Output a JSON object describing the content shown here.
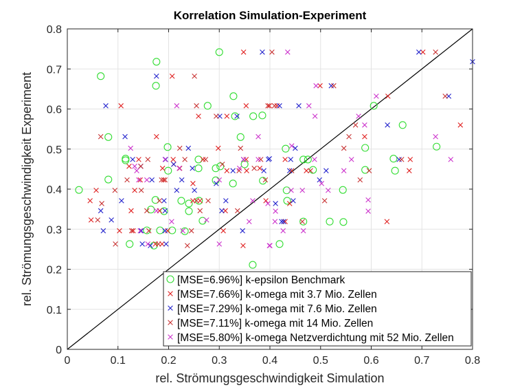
{
  "chart_data": {
    "type": "scatter",
    "title": "Korrelation Simulation-Experiment",
    "xlabel": "rel. Strömungsgeschwindigkeit Simulation",
    "ylabel": "rel. Strömungsgeschwindigkeit Experiment",
    "xlim": [
      0,
      0.8
    ],
    "ylim": [
      0,
      0.8
    ],
    "xticks": [
      "0",
      "0.1",
      "0.2",
      "0.3",
      "0.4",
      "0.5",
      "0.6",
      "0.7",
      "0.8"
    ],
    "yticks": [
      "0",
      "0.1",
      "0.2",
      "0.3",
      "0.4",
      "0.5",
      "0.6",
      "0.7",
      "0.8"
    ],
    "grid": true,
    "legend_position": "bottom-right",
    "reference_line": {
      "x": [
        0,
        0.8
      ],
      "y": [
        0,
        0.8
      ],
      "color": "#000000"
    },
    "series": [
      {
        "name": "[MSE=6.96%] k-epsilon Benchmark",
        "marker": "circle",
        "color": "#33dd33",
        "points": [
          [
            0.3,
            0.742
          ],
          [
            0.176,
            0.718
          ],
          [
            0.066,
            0.682
          ],
          [
            0.175,
            0.658
          ],
          [
            0.328,
            0.632
          ],
          [
            0.277,
            0.608
          ],
          [
            0.331,
            0.582
          ],
          [
            0.367,
            0.582
          ],
          [
            0.385,
            0.584
          ],
          [
            0.081,
            0.53
          ],
          [
            0.342,
            0.53
          ],
          [
            0.198,
            0.505
          ],
          [
            0.115,
            0.476
          ],
          [
            0.115,
            0.472
          ],
          [
            0.259,
            0.474
          ],
          [
            0.259,
            0.452
          ],
          [
            0.199,
            0.446
          ],
          [
            0.293,
            0.452
          ],
          [
            0.302,
            0.457
          ],
          [
            0.35,
            0.462
          ],
          [
            0.023,
            0.398
          ],
          [
            0.081,
            0.424
          ],
          [
            0.174,
            0.373
          ],
          [
            0.225,
            0.371
          ],
          [
            0.24,
            0.364
          ],
          [
            0.26,
            0.371
          ],
          [
            0.165,
            0.349
          ],
          [
            0.191,
            0.345
          ],
          [
            0.24,
            0.345
          ],
          [
            0.267,
            0.321
          ],
          [
            0.157,
            0.297
          ],
          [
            0.183,
            0.297
          ],
          [
            0.207,
            0.297
          ],
          [
            0.232,
            0.295
          ],
          [
            0.123,
            0.263
          ],
          [
            0.171,
            0.259
          ],
          [
            0.293,
            0.422
          ],
          [
            0.327,
            0.414
          ],
          [
            0.386,
            0.421
          ],
          [
            0.366,
            0.211
          ],
          [
            0.605,
            0.608
          ],
          [
            0.662,
            0.56
          ],
          [
            0.431,
            0.501
          ],
          [
            0.588,
            0.503
          ],
          [
            0.729,
            0.506
          ],
          [
            0.466,
            0.474
          ],
          [
            0.475,
            0.474
          ],
          [
            0.644,
            0.476
          ],
          [
            0.485,
            0.448
          ],
          [
            0.588,
            0.448
          ],
          [
            0.647,
            0.446
          ],
          [
            0.433,
            0.397
          ],
          [
            0.434,
            0.371
          ],
          [
            0.544,
            0.398
          ],
          [
            0.466,
            0.319
          ],
          [
            0.518,
            0.319
          ],
          [
            0.545,
            0.318
          ],
          [
            0.419,
            0.263
          ]
        ]
      },
      {
        "name": "[MSE=7.66%] k-omega mit 3.7 Mio. Zellen",
        "marker": "cross",
        "color": "#e02020",
        "points": [
          [
            0.348,
            0.742
          ],
          [
            0.207,
            0.682
          ],
          [
            0.106,
            0.608
          ],
          [
            0.353,
            0.608
          ],
          [
            0.259,
            0.582
          ],
          [
            0.315,
            0.582
          ],
          [
            0.176,
            0.531
          ],
          [
            0.298,
            0.502
          ],
          [
            0.141,
            0.474
          ],
          [
            0.209,
            0.474
          ],
          [
            0.268,
            0.474
          ],
          [
            0.353,
            0.474
          ],
          [
            0.122,
            0.457
          ],
          [
            0.21,
            0.462
          ],
          [
            0.188,
            0.452
          ],
          [
            0.315,
            0.446
          ],
          [
            0.354,
            0.446
          ],
          [
            0.38,
            0.452
          ],
          [
            0.144,
            0.423
          ],
          [
            0.19,
            0.423
          ],
          [
            0.248,
            0.414
          ],
          [
            0.057,
            0.397
          ],
          [
            0.133,
            0.397
          ],
          [
            0.045,
            0.371
          ],
          [
            0.248,
            0.371
          ],
          [
            0.262,
            0.371
          ],
          [
            0.392,
            0.371
          ],
          [
            0.126,
            0.346
          ],
          [
            0.182,
            0.346
          ],
          [
            0.312,
            0.346
          ],
          [
            0.047,
            0.323
          ],
          [
            0.103,
            0.296
          ],
          [
            0.13,
            0.296
          ],
          [
            0.198,
            0.296
          ],
          [
            0.308,
            0.296
          ],
          [
            0.174,
            0.263
          ],
          [
            0.187,
            0.263
          ],
          [
            0.347,
            0.259
          ],
          [
            0.702,
            0.742
          ],
          [
            0.499,
            0.658
          ],
          [
            0.633,
            0.632
          ],
          [
            0.399,
            0.608
          ],
          [
            0.414,
            0.608
          ],
          [
            0.776,
            0.56
          ],
          [
            0.587,
            0.531
          ],
          [
            0.43,
            0.474
          ],
          [
            0.677,
            0.474
          ],
          [
            0.472,
            0.446
          ],
          [
            0.675,
            0.446
          ],
          [
            0.439,
            0.364
          ],
          [
            0.43,
            0.319
          ],
          [
            0.631,
            0.319
          ]
        ]
      },
      {
        "name": "[MSE=7.29%] k-omega mit 7.6 Mio. Zellen",
        "marker": "cross",
        "color": "#2222cc",
        "points": [
          [
            0.385,
            0.742
          ],
          [
            0.176,
            0.682
          ],
          [
            0.076,
            0.608
          ],
          [
            0.301,
            0.582
          ],
          [
            0.335,
            0.582
          ],
          [
            0.114,
            0.531
          ],
          [
            0.239,
            0.502
          ],
          [
            0.129,
            0.474
          ],
          [
            0.194,
            0.474
          ],
          [
            0.348,
            0.474
          ],
          [
            0.397,
            0.474
          ],
          [
            0.145,
            0.457
          ],
          [
            0.21,
            0.462
          ],
          [
            0.247,
            0.452
          ],
          [
            0.327,
            0.446
          ],
          [
            0.388,
            0.446
          ],
          [
            0.167,
            0.423
          ],
          [
            0.226,
            0.423
          ],
          [
            0.294,
            0.414
          ],
          [
            0.216,
            0.397
          ],
          [
            0.251,
            0.397
          ],
          [
            0.107,
            0.371
          ],
          [
            0.191,
            0.371
          ],
          [
            0.313,
            0.371
          ],
          [
            0.066,
            0.346
          ],
          [
            0.193,
            0.346
          ],
          [
            0.305,
            0.346
          ],
          [
            0.087,
            0.323
          ],
          [
            0.071,
            0.296
          ],
          [
            0.146,
            0.296
          ],
          [
            0.193,
            0.296
          ],
          [
            0.346,
            0.296
          ],
          [
            0.148,
            0.263
          ],
          [
            0.164,
            0.259
          ],
          [
            0.195,
            0.263
          ],
          [
            0.694,
            0.742
          ],
          [
            0.8,
            0.718
          ],
          [
            0.521,
            0.658
          ],
          [
            0.753,
            0.632
          ],
          [
            0.419,
            0.608
          ],
          [
            0.457,
            0.608
          ],
          [
            0.632,
            0.56
          ],
          [
            0.45,
            0.502
          ],
          [
            0.399,
            0.476
          ],
          [
            0.441,
            0.474
          ],
          [
            0.655,
            0.474
          ],
          [
            0.439,
            0.446
          ],
          [
            0.511,
            0.446
          ],
          [
            0.498,
            0.423
          ],
          [
            0.411,
            0.364
          ],
          [
            0.446,
            0.371
          ],
          [
            0.423,
            0.319
          ],
          [
            0.427,
            0.319
          ]
        ]
      },
      {
        "name": "[MSE=7.11%] k-omega mit 14 Mio. Zellen",
        "marker": "cross",
        "color": "#c83232",
        "points": [
          [
            0.404,
            0.742
          ],
          [
            0.251,
            0.682
          ],
          [
            0.255,
            0.608
          ],
          [
            0.396,
            0.608
          ],
          [
            0.294,
            0.582
          ],
          [
            0.066,
            0.531
          ],
          [
            0.222,
            0.502
          ],
          [
            0.342,
            0.502
          ],
          [
            0.159,
            0.474
          ],
          [
            0.232,
            0.474
          ],
          [
            0.273,
            0.474
          ],
          [
            0.382,
            0.474
          ],
          [
            0.145,
            0.457
          ],
          [
            0.222,
            0.452
          ],
          [
            0.306,
            0.462
          ],
          [
            0.339,
            0.446
          ],
          [
            0.369,
            0.452
          ],
          [
            0.118,
            0.423
          ],
          [
            0.186,
            0.423
          ],
          [
            0.193,
            0.423
          ],
          [
            0.391,
            0.423
          ],
          [
            0.094,
            0.397
          ],
          [
            0.146,
            0.397
          ],
          [
            0.182,
            0.371
          ],
          [
            0.255,
            0.371
          ],
          [
            0.278,
            0.371
          ],
          [
            0.068,
            0.364
          ],
          [
            0.157,
            0.346
          ],
          [
            0.262,
            0.346
          ],
          [
            0.336,
            0.346
          ],
          [
            0.06,
            0.323
          ],
          [
            0.127,
            0.296
          ],
          [
            0.161,
            0.296
          ],
          [
            0.245,
            0.296
          ],
          [
            0.095,
            0.263
          ],
          [
            0.18,
            0.263
          ],
          [
            0.237,
            0.259
          ],
          [
            0.727,
            0.742
          ],
          [
            0.526,
            0.658
          ],
          [
            0.746,
            0.632
          ],
          [
            0.409,
            0.608
          ],
          [
            0.569,
            0.56
          ],
          [
            0.556,
            0.531
          ],
          [
            0.546,
            0.502
          ],
          [
            0.66,
            0.474
          ],
          [
            0.443,
            0.446
          ],
          [
            0.48,
            0.446
          ],
          [
            0.596,
            0.446
          ],
          [
            0.578,
            0.423
          ],
          [
            0.508,
            0.371
          ],
          [
            0.464,
            0.319
          ]
        ]
      },
      {
        "name": "[MSE=5.80%] k-omega Netzverdichtung mit 52 Mio. Zellen",
        "marker": "cross",
        "color": "#cc33cc",
        "points": [
          [
            0.216,
            0.608
          ],
          [
            0.377,
            0.531
          ],
          [
            0.125,
            0.502
          ],
          [
            0.193,
            0.474
          ],
          [
            0.348,
            0.474
          ],
          [
            0.377,
            0.474
          ],
          [
            0.133,
            0.457
          ],
          [
            0.221,
            0.452
          ],
          [
            0.34,
            0.452
          ],
          [
            0.137,
            0.446
          ],
          [
            0.141,
            0.423
          ],
          [
            0.157,
            0.423
          ],
          [
            0.3,
            0.423
          ],
          [
            0.366,
            0.371
          ],
          [
            0.396,
            0.364
          ],
          [
            0.176,
            0.346
          ],
          [
            0.206,
            0.319
          ],
          [
            0.275,
            0.323
          ],
          [
            0.359,
            0.319
          ],
          [
            0.144,
            0.296
          ],
          [
            0.228,
            0.296
          ],
          [
            0.159,
            0.263
          ],
          [
            0.3,
            0.263
          ],
          [
            0.399,
            0.259
          ],
          [
            0.435,
            0.742
          ],
          [
            0.491,
            0.658
          ],
          [
            0.61,
            0.632
          ],
          [
            0.477,
            0.608
          ],
          [
            0.489,
            0.582
          ],
          [
            0.575,
            0.582
          ],
          [
            0.587,
            0.56
          ],
          [
            0.727,
            0.531
          ],
          [
            0.443,
            0.508
          ],
          [
            0.488,
            0.474
          ],
          [
            0.561,
            0.474
          ],
          [
            0.757,
            0.474
          ],
          [
            0.546,
            0.446
          ],
          [
            0.502,
            0.414
          ],
          [
            0.442,
            0.397
          ],
          [
            0.464,
            0.397
          ],
          [
            0.515,
            0.397
          ],
          [
            0.594,
            0.373
          ],
          [
            0.411,
            0.345
          ],
          [
            0.594,
            0.345
          ],
          [
            0.41,
            0.319
          ],
          [
            0.426,
            0.296
          ],
          [
            0.466,
            0.296
          ],
          [
            0.4,
            0.259
          ]
        ]
      }
    ]
  }
}
